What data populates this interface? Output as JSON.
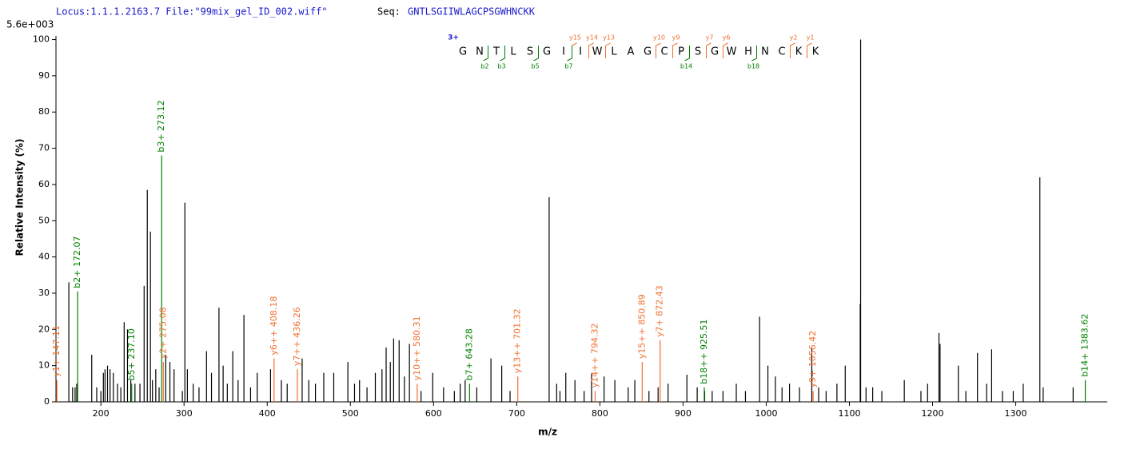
{
  "chart_data": {
    "type": "spectrum",
    "title": "Locus:1.1.1.2163.7 File:\"99mix_gel_ID_002.wiff\"",
    "seq_label": "Seq:",
    "sequence": "GNTLSGIIWLAGCPSGWHNCKK",
    "scale_label": "5.6e+003",
    "x_label": "m/z",
    "y_label": "Relative   Intensity (%)",
    "xlim": [
      146,
      1410
    ],
    "ylim": [
      0,
      101
    ],
    "xticks": [
      200,
      300,
      400,
      500,
      600,
      700,
      800,
      900,
      1000,
      1100,
      1200,
      1300
    ],
    "yticks": [
      0,
      10,
      20,
      30,
      40,
      50,
      60,
      70,
      80,
      90,
      100
    ],
    "peptide_map": {
      "charge": "3+",
      "residues": [
        "G",
        "N",
        "T",
        "L",
        "S",
        "G",
        "I",
        "I",
        "W",
        "L",
        "A",
        "G",
        "C",
        "P",
        "S",
        "G",
        "W",
        "H",
        "N",
        "C",
        "K",
        "K"
      ],
      "y_fragments": [
        "y15",
        "y14",
        "y13",
        "y10",
        "y9",
        "y7",
        "y6",
        "y2",
        "y1"
      ],
      "b_fragments": [
        "b2",
        "b3",
        "b5",
        "b7",
        "b14",
        "b18"
      ],
      "y_color": "#f07030",
      "b_color": "#008000",
      "residue_color": "#000000"
    },
    "series": [
      {
        "color": "#000000",
        "x": [
          161.5,
          166,
          169,
          171,
          189,
          195,
          200,
          203,
          205,
          208,
          211,
          215,
          220,
          224,
          228,
          232,
          236,
          241,
          247,
          252,
          255.8,
          259.6,
          262,
          266,
          270,
          278,
          283,
          288,
          298,
          301,
          304,
          311,
          318,
          327,
          333,
          342,
          347,
          352,
          358.6,
          365,
          372,
          380,
          388,
          404,
          417,
          424,
          442,
          450,
          458,
          468,
          480,
          497,
          505,
          511,
          520,
          530,
          538,
          543,
          548,
          552,
          558.6,
          565,
          571,
          585,
          599,
          612,
          625,
          632,
          638,
          652,
          669,
          682,
          692,
          739,
          748,
          752,
          759,
          770,
          781,
          790,
          805,
          818,
          834,
          842,
          859,
          870,
          882,
          904.6,
          917,
          926,
          935,
          948,
          964,
          975,
          992,
          1002,
          1011,
          1019,
          1028,
          1040,
          1054.8,
          1063,
          1072,
          1085,
          1095,
          1113,
          1113.5,
          1120,
          1128,
          1139,
          1166,
          1186,
          1194,
          1207.7,
          1209,
          1231,
          1240,
          1254,
          1265,
          1271,
          1284,
          1297,
          1309,
          1329,
          1333,
          1369
        ],
        "values": [
          33,
          4,
          4,
          5,
          13,
          4,
          3,
          8,
          9,
          10,
          9,
          8,
          5,
          4,
          22,
          20,
          6,
          5,
          5,
          32,
          58.5,
          47,
          6,
          9,
          4,
          13,
          11,
          9,
          3,
          55,
          9,
          5,
          4,
          14,
          8,
          26,
          10,
          5,
          14,
          6,
          24,
          4,
          8,
          9,
          6,
          5,
          12,
          6,
          5,
          8,
          8,
          11,
          5,
          6,
          4,
          8,
          9,
          15,
          11,
          17.5,
          17,
          7,
          16,
          3,
          8,
          4,
          3,
          5,
          6,
          4,
          12,
          10,
          3,
          56.5,
          5,
          3,
          8,
          6,
          3,
          8,
          7,
          6,
          4,
          6,
          3,
          4,
          5,
          7.5,
          4,
          3,
          3,
          3,
          5,
          3,
          23.5,
          10,
          7,
          4,
          5,
          4,
          15,
          4,
          3,
          5,
          10,
          27,
          100,
          4,
          4,
          3,
          6,
          3,
          5,
          19,
          16,
          10,
          3,
          13.5,
          5,
          14.5,
          3,
          3,
          5,
          62,
          4,
          4
        ]
      },
      {
        "color": "#008000",
        "x": [
          172.07,
          237.1,
          273.12,
          643.28,
          925.51,
          1383.62
        ],
        "values": [
          30.5,
          5,
          68,
          5,
          4,
          6
        ],
        "labels": [
          "b2+ 172.07",
          "b5+ 237.10",
          "b3+ 273.12",
          "b7+ 643.28",
          "b18++ 925.51",
          "b14+ 1383.62"
        ]
      },
      {
        "color": "#f07030",
        "x": [
          147.11,
          275.08,
          408.18,
          436.26,
          580.31,
          701.32,
          794.32,
          850.89,
          872.43,
          1056.42
        ],
        "values": [
          6,
          11,
          12,
          9,
          5,
          7,
          3,
          11,
          17,
          3
        ],
        "labels": [
          "y1+ 147.11",
          "y2+ 275.08",
          "y6++ 408.18",
          "y7++ 436.26",
          "y10++ 580.31",
          "y13++ 701.32",
          "y14++ 794.32",
          "y15++ 850.89",
          "y7+ 872.43",
          "y9+ 1056.42"
        ]
      }
    ]
  }
}
